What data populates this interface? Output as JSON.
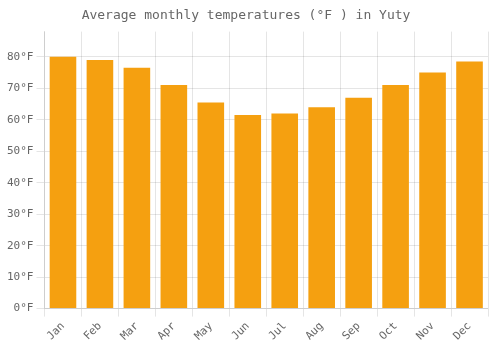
{
  "chart_data": {
    "type": "bar",
    "title": "Average monthly temperatures (°F ) in Yuty",
    "categories": [
      "Jan",
      "Feb",
      "Mar",
      "Apr",
      "May",
      "Jun",
      "Jul",
      "Aug",
      "Sep",
      "Oct",
      "Nov",
      "Dec"
    ],
    "values": [
      80,
      79,
      76.5,
      71,
      65.5,
      61.5,
      62,
      64,
      67,
      71,
      75,
      78.5
    ],
    "color": "#F5A010",
    "ylim": [
      0,
      88
    ],
    "yticks": [
      {
        "value": 0,
        "label": "0°F"
      },
      {
        "value": 10,
        "label": "10°F"
      },
      {
        "value": 20,
        "label": "20°F"
      },
      {
        "value": 30,
        "label": "30°F"
      },
      {
        "value": 40,
        "label": "40°F"
      },
      {
        "value": 50,
        "label": "50°F"
      },
      {
        "value": 60,
        "label": "60°F"
      },
      {
        "value": 70,
        "label": "70°F"
      },
      {
        "value": 80,
        "label": "80°F"
      }
    ],
    "grid": true
  }
}
